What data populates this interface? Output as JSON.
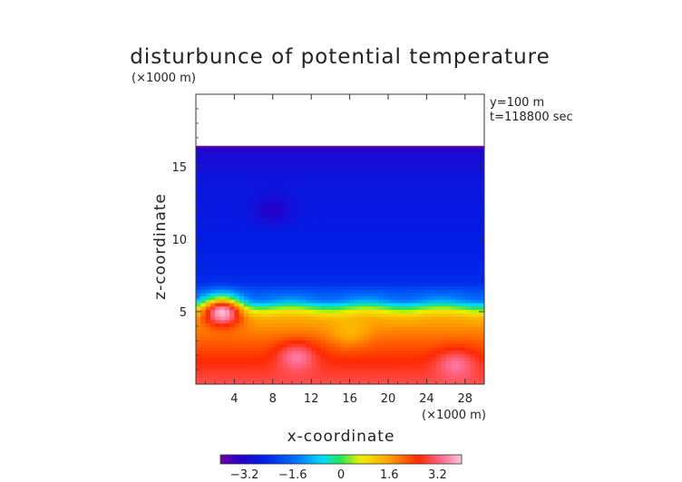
{
  "chart_data": {
    "type": "heatmap",
    "title": "disturbunce of potential temperature",
    "title_unit": "(×1000 m)",
    "xlabel": "x-coordinate",
    "ylabel": "z-coordinate",
    "x_unit": "(×1000 m)",
    "annotations": [
      "y=100  m",
      "t=118800 sec"
    ],
    "xlim": [
      0,
      30
    ],
    "ylim": [
      0,
      20
    ],
    "x_ticks": [
      4,
      8,
      12,
      16,
      20,
      24,
      28
    ],
    "y_ticks": [
      5,
      10,
      15
    ],
    "domain_top": 16.4,
    "colorbar": {
      "min": -4.0,
      "max": 4.0,
      "ticks": [
        -3.2,
        -1.6,
        0,
        1.6,
        3.2
      ],
      "tick_labels": [
        "−3.2",
        "−1.6",
        "0",
        "1.6",
        "3.2"
      ],
      "colormap": "rainbow (purple-blue-cyan-green-yellow-orange-red-pink)"
    },
    "vertical_profile": [
      {
        "z": 0.0,
        "value": 3.0
      },
      {
        "z": 1.5,
        "value": 2.6
      },
      {
        "z": 3.0,
        "value": 2.1
      },
      {
        "z": 4.5,
        "value": 1.5
      },
      {
        "z": 5.2,
        "value": 0.4
      },
      {
        "z": 5.8,
        "value": -1.3
      },
      {
        "z": 7.0,
        "value": -2.4
      },
      {
        "z": 10.0,
        "value": -2.6
      },
      {
        "z": 14.0,
        "value": -2.8
      },
      {
        "z": 16.0,
        "value": -3.1
      },
      {
        "z": 16.4,
        "value": -3.5
      }
    ],
    "anomalies": [
      {
        "x": 2.8,
        "z": 5.2,
        "amplitude": 3.2
      },
      {
        "x": 10.5,
        "z": 2.0,
        "amplitude": 1.0
      },
      {
        "x": 16.0,
        "z": 3.5,
        "amplitude": -0.5
      },
      {
        "x": 27.0,
        "z": 1.5,
        "amplitude": 0.8
      },
      {
        "x": 8.0,
        "z": 12.0,
        "amplitude": -0.6
      }
    ]
  }
}
